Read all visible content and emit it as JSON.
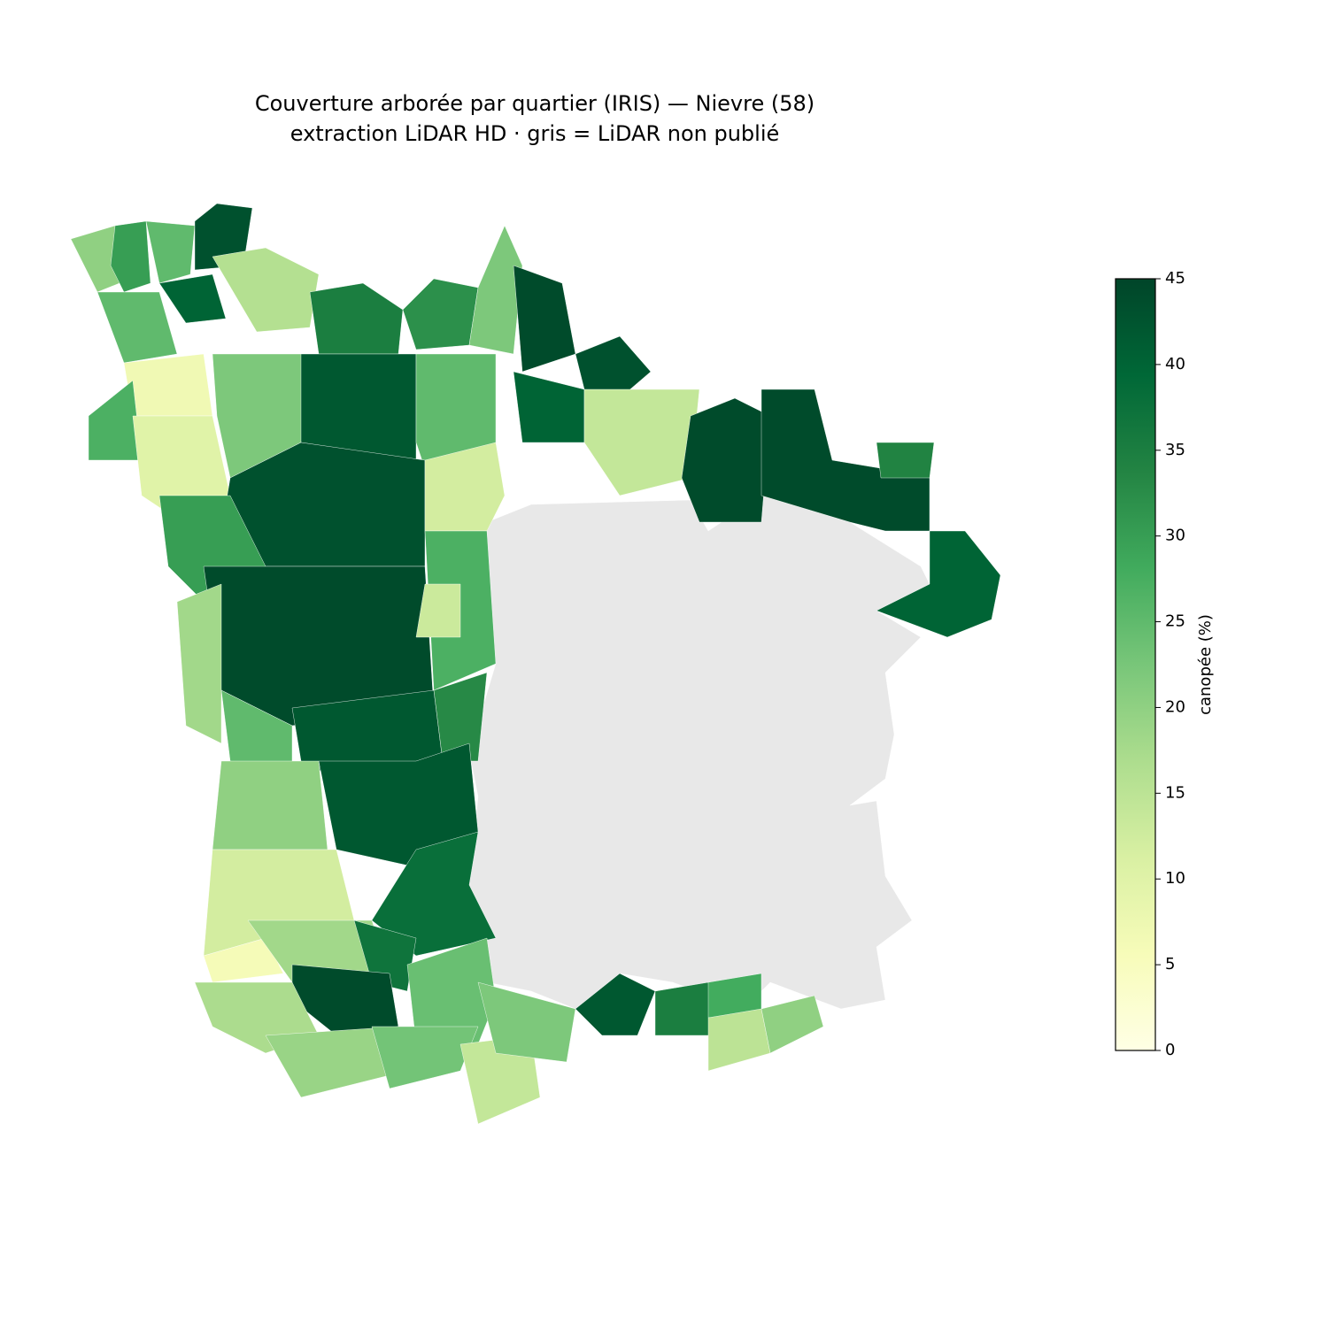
{
  "chart_data": {
    "type": "choropleth",
    "title": "Couverture arborée par quartier (IRIS) — Nievre (58)",
    "subtitle": "extraction LiDAR HD · gris = LiDAR non publié",
    "colorbar_label": "canopée (%)",
    "clim": [
      0,
      45
    ],
    "cticks": [
      0,
      5,
      10,
      15,
      20,
      25,
      30,
      35,
      40,
      45
    ],
    "colormap": [
      "#ffffe5",
      "#f7fcb9",
      "#d9f0a3",
      "#addd8e",
      "#78c679",
      "#41ab5d",
      "#238443",
      "#006837",
      "#004529"
    ],
    "missing_color": "#e8e8e8",
    "values": [
      20,
      30,
      25,
      43,
      40,
      25,
      7,
      27,
      16,
      35,
      32,
      22,
      44,
      43,
      40,
      14,
      44,
      44,
      34,
      40,
      10,
      22,
      42,
      25,
      43,
      12,
      30,
      44,
      27,
      13,
      18,
      25,
      42,
      33,
      20,
      42,
      38,
      12,
      6,
      18,
      37,
      44,
      17,
      19,
      24,
      23,
      14,
      22,
      42,
      35,
      28,
      15,
      20
    ]
  }
}
